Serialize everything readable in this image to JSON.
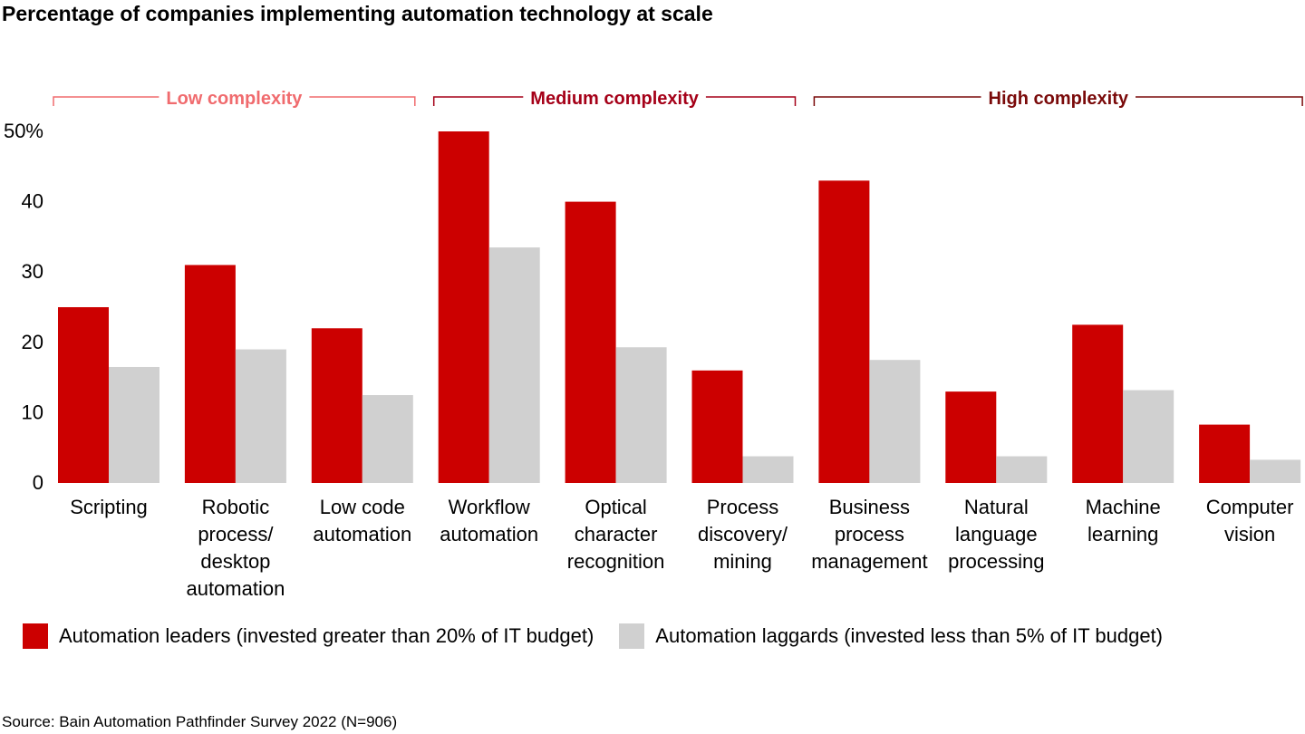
{
  "title": "Percentage of companies implementing automation technology at scale",
  "source": "Source: Bain Automation Pathfinder Survey 2022 (N=906)",
  "colors": {
    "leaders": "#cc0000",
    "laggards": "#d0d0d0",
    "low": "#f06b6e",
    "medium": "#a50018",
    "high": "#7a0a0a"
  },
  "chart_data": {
    "type": "bar",
    "title": "Percentage of companies implementing automation technology at scale",
    "categories": [
      [
        "Scripting"
      ],
      [
        "Robotic",
        "process/",
        "desktop",
        "automation"
      ],
      [
        "Low code",
        "automation"
      ],
      [
        "Workflow",
        "automation"
      ],
      [
        "Optical",
        "character",
        "recognition"
      ],
      [
        "Process",
        "discovery/",
        "mining"
      ],
      [
        "Business",
        "process",
        "management"
      ],
      [
        "Natural",
        "language",
        "processing"
      ],
      [
        "Machine",
        "learning"
      ],
      [
        "Computer",
        "vision"
      ]
    ],
    "series": [
      {
        "name": "Automation leaders (invested greater than 20% of IT budget)",
        "values": [
          25,
          31,
          22,
          50,
          40,
          16,
          43,
          13,
          22.5,
          8.3
        ]
      },
      {
        "name": "Automation laggards (invested less than 5% of IT budget)",
        "values": [
          16.5,
          19,
          12.5,
          33.5,
          19.3,
          3.8,
          17.5,
          3.8,
          13.2,
          3.3
        ]
      }
    ],
    "groups": [
      {
        "label": "Low complexity",
        "start": 0,
        "end": 2
      },
      {
        "label": "Medium complexity",
        "start": 3,
        "end": 5
      },
      {
        "label": "High complexity",
        "start": 6,
        "end": 9
      }
    ],
    "yticks": [
      "0",
      "10",
      "20",
      "30",
      "40",
      "50%"
    ],
    "ylim": [
      0,
      50
    ],
    "grid": false,
    "legend_position": "bottom"
  }
}
